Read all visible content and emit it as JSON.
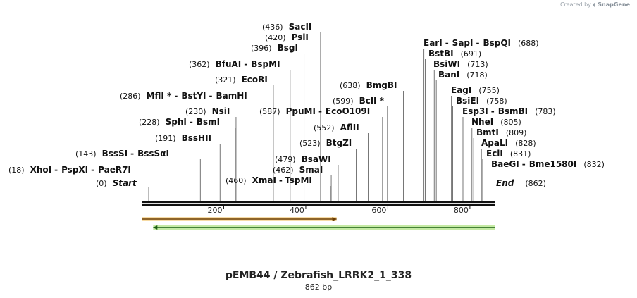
{
  "credit": {
    "prefix": "Created by",
    "brand": "SnapGene"
  },
  "map": {
    "title": "pEMB44 / Zebrafish_LRRK2_1_338",
    "length_label": "862 bp",
    "length": 862,
    "ticks": [
      200,
      400,
      600,
      800
    ],
    "tick_labels": [
      "200",
      "400",
      "600",
      "800"
    ],
    "start_label": {
      "pos": "(0)",
      "name": "Start"
    },
    "end_label": {
      "name": "End",
      "pos": "(862)"
    },
    "features": [
      {
        "type": "arrow",
        "start": 0,
        "end": 475,
        "direction": "forward",
        "color": "#e8a33a",
        "fill": "#f6d79a"
      },
      {
        "type": "arrow",
        "start": 28,
        "end": 862,
        "direction": "reverse",
        "color": "#3a9a2a",
        "fill": "#bfe89a"
      }
    ],
    "sites": [
      {
        "pos": 18,
        "pos_label": "(18)",
        "names": [
          "XhoI",
          "PspXI",
          "PaeR7I"
        ]
      },
      {
        "pos": 143,
        "pos_label": "(143)",
        "names": [
          "BssSI",
          "BssSαI"
        ]
      },
      {
        "pos": 191,
        "pos_label": "(191)",
        "names": [
          "BssHII"
        ]
      },
      {
        "pos": 228,
        "pos_label": "(228)",
        "names": [
          "SphI",
          "BsmI"
        ]
      },
      {
        "pos": 230,
        "pos_label": "(230)",
        "names": [
          "NsiI"
        ]
      },
      {
        "pos": 286,
        "pos_label": "(286)",
        "names": [
          "MflI *",
          "BstYI",
          "BamHI"
        ]
      },
      {
        "pos": 321,
        "pos_label": "(321)",
        "names": [
          "EcoRI"
        ]
      },
      {
        "pos": 362,
        "pos_label": "(362)",
        "names": [
          "BfuAI",
          "BspMI"
        ]
      },
      {
        "pos": 396,
        "pos_label": "(396)",
        "names": [
          "BsgI"
        ]
      },
      {
        "pos": 420,
        "pos_label": "(420)",
        "names": [
          "PsiI"
        ]
      },
      {
        "pos": 436,
        "pos_label": "(436)",
        "names": [
          "SacII"
        ]
      },
      {
        "pos": 460,
        "pos_label": "(460)",
        "names": [
          "XmaI",
          "TspMI"
        ]
      },
      {
        "pos": 462,
        "pos_label": "(462)",
        "names": [
          "SmaI"
        ]
      },
      {
        "pos": 479,
        "pos_label": "(479)",
        "names": [
          "BsaWI"
        ]
      },
      {
        "pos": 523,
        "pos_label": "(523)",
        "names": [
          "BtgZI"
        ]
      },
      {
        "pos": 552,
        "pos_label": "(552)",
        "names": [
          "AflII"
        ]
      },
      {
        "pos": 587,
        "pos_label": "(587)",
        "names": [
          "PpuMI",
          "EcoO109I"
        ]
      },
      {
        "pos": 599,
        "pos_label": "(599)",
        "names": [
          "BclI *"
        ]
      },
      {
        "pos": 638,
        "pos_label": "(638)",
        "names": [
          "BmgBI"
        ]
      },
      {
        "pos": 688,
        "pos_label": "(688)",
        "names": [
          "EarI",
          "SapI",
          "BspQI"
        ]
      },
      {
        "pos": 691,
        "pos_label": "(691)",
        "names": [
          "BstBI"
        ]
      },
      {
        "pos": 713,
        "pos_label": "(713)",
        "names": [
          "BsiWI"
        ]
      },
      {
        "pos": 718,
        "pos_label": "(718)",
        "names": [
          "BanI"
        ]
      },
      {
        "pos": 755,
        "pos_label": "(755)",
        "names": [
          "EagI"
        ]
      },
      {
        "pos": 758,
        "pos_label": "(758)",
        "names": [
          "BsiEI"
        ]
      },
      {
        "pos": 783,
        "pos_label": "(783)",
        "names": [
          "Esp3I",
          "BsmBI"
        ]
      },
      {
        "pos": 805,
        "pos_label": "(805)",
        "names": [
          "NheI"
        ]
      },
      {
        "pos": 809,
        "pos_label": "(809)",
        "names": [
          "BmtI"
        ]
      },
      {
        "pos": 828,
        "pos_label": "(828)",
        "names": [
          "ApaLI"
        ]
      },
      {
        "pos": 831,
        "pos_label": "(831)",
        "names": [
          "EciI"
        ]
      },
      {
        "pos": 832,
        "pos_label": "(832)",
        "names": [
          "BaeGI",
          "Bme1580I"
        ]
      }
    ]
  }
}
